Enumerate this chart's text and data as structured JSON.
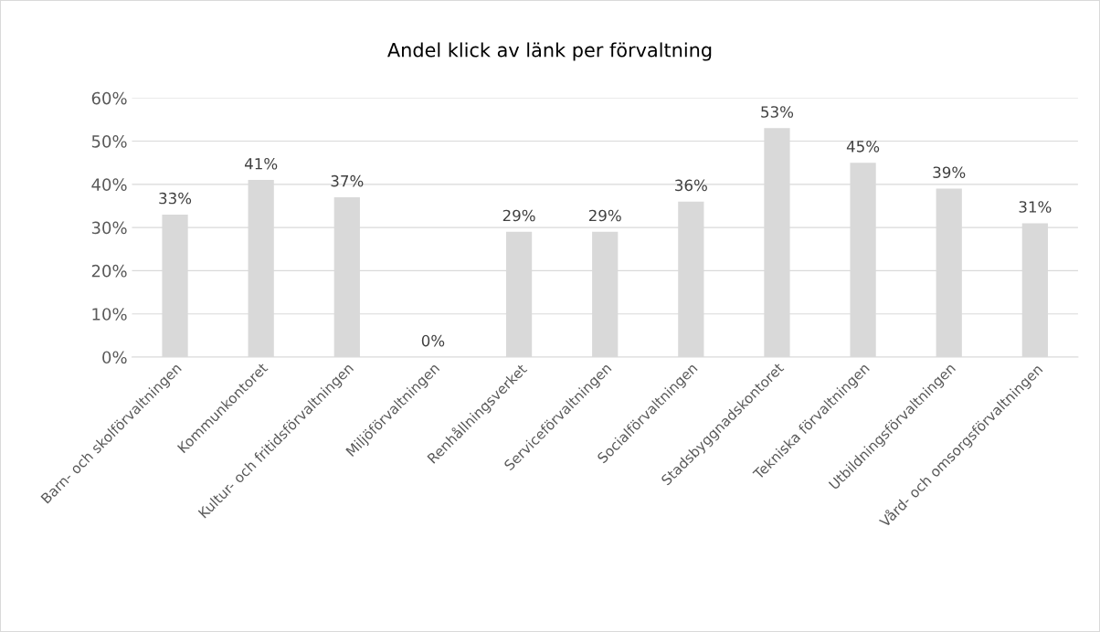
{
  "chart_data": {
    "type": "bar",
    "title": "Andel klick av länk per förvaltning",
    "categories": [
      "Barn- och skolförvaltningen",
      "Kommunkontoret",
      "Kultur- och fritidsförvaltningen",
      "Miljöförvaltningen",
      "Renhållningsverket",
      "Serviceförvaltningen",
      "Socialförvaltningen",
      "Stadsbyggnadskontoret",
      "Tekniska förvaltningen",
      "Utbildningsförvaltningen",
      "Vård- och omsorgsförvaltningen"
    ],
    "values": [
      33,
      41,
      37,
      0,
      29,
      29,
      36,
      53,
      45,
      39,
      31
    ],
    "value_labels": [
      "33%",
      "41%",
      "37%",
      "0%",
      "29%",
      "29%",
      "36%",
      "53%",
      "45%",
      "39%",
      "31%"
    ],
    "color": "#d9d9d9",
    "ylim": [
      0,
      60
    ],
    "yticks": [
      {
        "value": 0,
        "label": "0%"
      },
      {
        "value": 10,
        "label": "10%"
      },
      {
        "value": 20,
        "label": "20%"
      },
      {
        "value": 30,
        "label": "30%"
      },
      {
        "value": 40,
        "label": "40%"
      },
      {
        "value": 50,
        "label": "50%"
      },
      {
        "value": 60,
        "label": "60%"
      }
    ],
    "grid": "y",
    "legend": false
  }
}
